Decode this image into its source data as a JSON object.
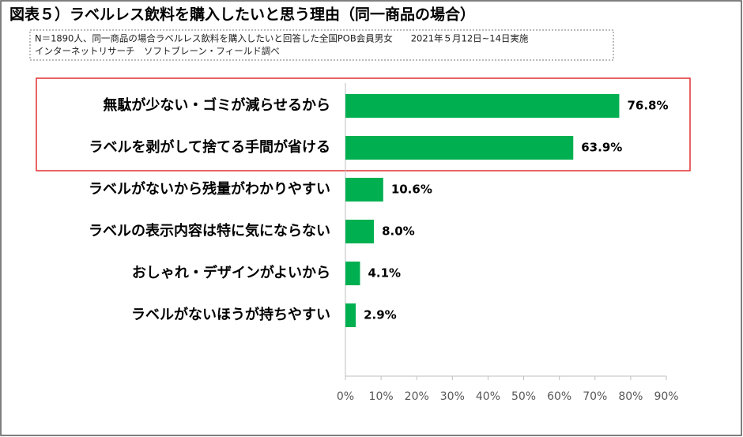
{
  "chart_data": {
    "type": "barh",
    "title": "図表５）ラベルレス飲料を購入したいと思う理由（同一商品の場合）",
    "notes": [
      "N＝1890人、同一商品の場合ラベルレス飲料を購入したいと回答した全国POB会員男女　　2021年５月12日~14日実施",
      "インターネットリサーチ　ソフトブレーン・フィールド調べ"
    ],
    "categories": [
      "無駄が少ない・ゴミが減らせるから",
      "ラベルを剥がして捨てる手間が省ける",
      "ラベルがないから残量がわかりやすい",
      "ラベルの表示内容は特に気にならない",
      "おしゃれ・デザインがよいから",
      "ラベルがないほうが持ちやすい"
    ],
    "values": [
      76.8,
      63.9,
      10.6,
      8.0,
      4.1,
      2.9
    ],
    "value_labels": [
      "76.8%",
      "63.9%",
      "10.6%",
      "8.0%",
      "4.1%",
      "2.9%"
    ],
    "color": "#00b050",
    "xlim": [
      0,
      90
    ],
    "xticks": [
      {
        "value": 0,
        "label": "0%"
      },
      {
        "value": 10,
        "label": "10%"
      },
      {
        "value": 20,
        "label": "20%"
      },
      {
        "value": 30,
        "label": "30%"
      },
      {
        "value": 40,
        "label": "40%"
      },
      {
        "value": 50,
        "label": "50%"
      },
      {
        "value": 60,
        "label": "60%"
      },
      {
        "value": 70,
        "label": "70%"
      },
      {
        "value": 80,
        "label": "80%"
      },
      {
        "value": 90,
        "label": "90%"
      }
    ]
  }
}
